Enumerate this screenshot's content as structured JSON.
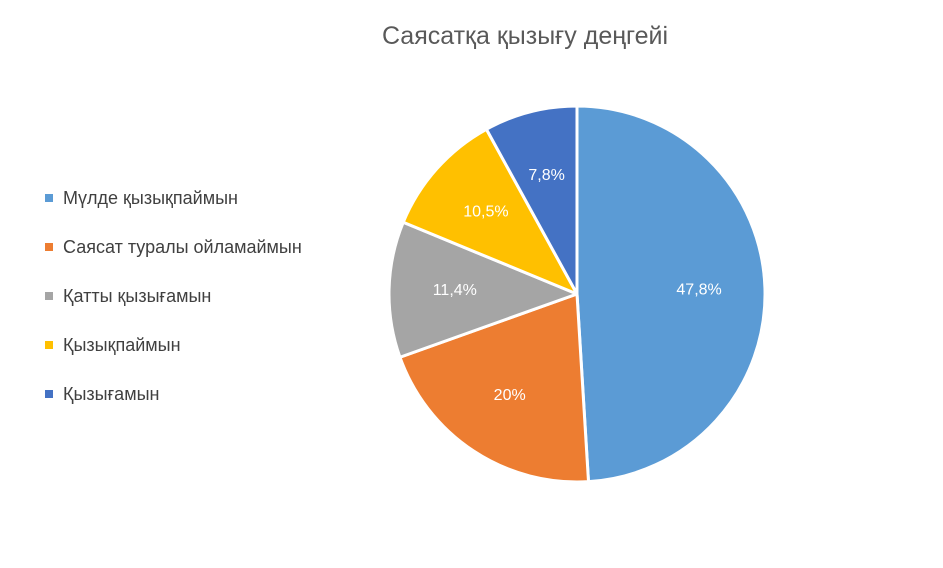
{
  "chart_data": {
    "type": "pie",
    "title": "Саясатқа қызығу деңгейі",
    "legend_position": "left",
    "slices": [
      {
        "label": "Мүлде қызықпаймын",
        "value": 47.8,
        "value_label": "47,8%",
        "color": "#5B9BD5"
      },
      {
        "label": "Саясат туралы ойламаймын",
        "value": 20,
        "value_label": "20%",
        "color": "#ED7D31"
      },
      {
        "label": "Қатты қызығамын",
        "value": 11.4,
        "value_label": "11,4%",
        "color": "#A5A5A5"
      },
      {
        "label": "Қызықпаймын",
        "value": 10.5,
        "value_label": "10,5%",
        "color": "#FFC000"
      },
      {
        "label": "Қызығамын",
        "value": 7.8,
        "value_label": "7,8%",
        "color": "#4472C4"
      }
    ]
  }
}
